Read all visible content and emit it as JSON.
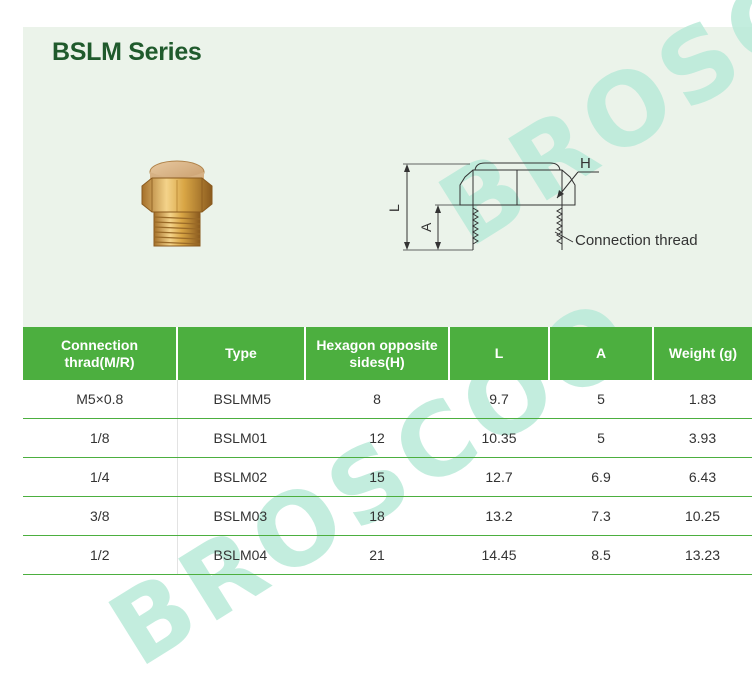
{
  "title": "BSLM Series",
  "watermark": "BROSCOO",
  "diagram": {
    "label_h": "H",
    "label_l": "L",
    "label_a": "A",
    "label_connection": "Connection thread"
  },
  "table": {
    "headers": [
      "Connection thrad(M/R)",
      "Type",
      "Hexagon opposite sides(H)",
      "L",
      "A",
      "Weight (g)"
    ],
    "rows": [
      [
        "M5×0.8",
        "BSLMM5",
        "8",
        "9.7",
        "5",
        "1.83"
      ],
      [
        "1/8",
        "BSLM01",
        "12",
        "10.35",
        "5",
        "3.93"
      ],
      [
        "1/4",
        "BSLM02",
        "15",
        "12.7",
        "6.9",
        "6.43"
      ],
      [
        "3/8",
        "BSLM03",
        "18",
        "13.2",
        "7.3",
        "10.25"
      ],
      [
        "1/2",
        "BSLM04",
        "21",
        "14.45",
        "8.5",
        "13.23"
      ]
    ]
  },
  "colors": {
    "header_green": "#4caf3f",
    "title_green": "#1f5a2c",
    "panel_bg": "#ebf3ea",
    "brass": "#d9a645"
  }
}
